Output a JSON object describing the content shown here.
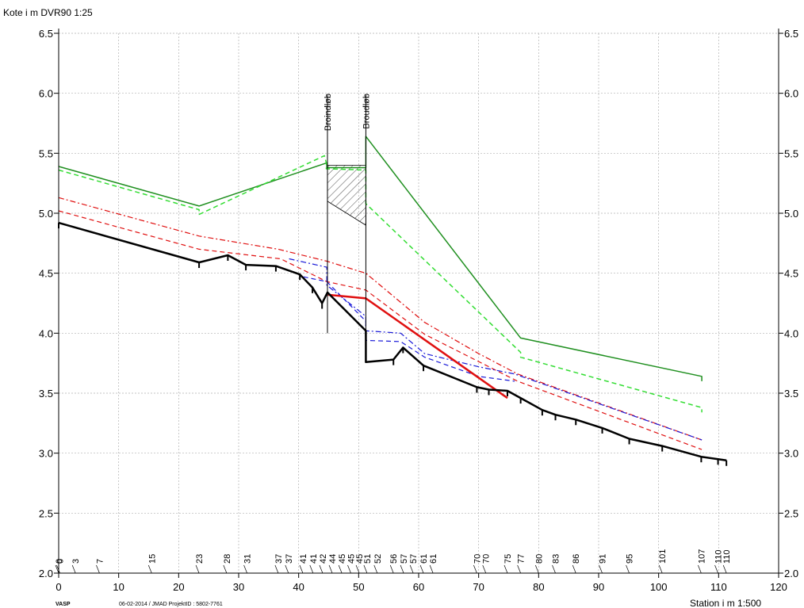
{
  "chart_data": {
    "type": "line",
    "ylabel": "Kote i m DVR90 1:25",
    "xlabel": "Station i m 1:500",
    "xlim": [
      0,
      120
    ],
    "ylim": [
      2.0,
      6.5
    ],
    "x_ticks": [
      0,
      10,
      20,
      30,
      40,
      50,
      60,
      70,
      80,
      90,
      100,
      110,
      120
    ],
    "y_ticks": [
      2.0,
      2.5,
      3.0,
      3.5,
      4.0,
      4.5,
      5.0,
      5.5,
      6.0,
      6.5
    ],
    "y_tick_labels": [
      "2.0",
      "2.5",
      "3.0",
      "3.5",
      "4.0",
      "4.5",
      "5.0",
      "5.5",
      "6.0",
      "6.5"
    ],
    "grid": true,
    "footer_left": "VASP",
    "footer_center": "06-02-2014 / JMAD   ProjektID : 5802-7761",
    "bridges": [
      {
        "label": "Broindløb",
        "x": 44.8
      },
      {
        "label": "Broudløb",
        "x": 51.2
      }
    ],
    "bridge_deck": {
      "x_start": 44.8,
      "x_end": 51.2,
      "top": 5.4,
      "bottom_start": 5.1,
      "bottom_end": 4.9
    },
    "stations": [
      {
        "x": 0,
        "label": "0"
      },
      {
        "x": 0.2,
        "label": "0"
      },
      {
        "x": 2.8,
        "label": "3"
      },
      {
        "x": 6.8,
        "label": "7"
      },
      {
        "x": 15.5,
        "label": "15"
      },
      {
        "x": 23.4,
        "label": "23"
      },
      {
        "x": 28,
        "label": "28"
      },
      {
        "x": 31.4,
        "label": "31"
      },
      {
        "x": 36.6,
        "label": "37"
      },
      {
        "x": 38.3,
        "label": "37"
      },
      {
        "x": 40.7,
        "label": "41"
      },
      {
        "x": 42.4,
        "label": "41"
      },
      {
        "x": 44,
        "label": "42"
      },
      {
        "x": 45.6,
        "label": "44"
      },
      {
        "x": 47.2,
        "label": "45"
      },
      {
        "x": 48.7,
        "label": "45"
      },
      {
        "x": 50.1,
        "label": "45"
      },
      {
        "x": 51.4,
        "label": "51"
      },
      {
        "x": 53.1,
        "label": "52"
      },
      {
        "x": 55.8,
        "label": "56"
      },
      {
        "x": 57.5,
        "label": "57"
      },
      {
        "x": 59.1,
        "label": "57"
      },
      {
        "x": 60.8,
        "label": "61"
      },
      {
        "x": 62.4,
        "label": "61"
      },
      {
        "x": 69.7,
        "label": "70"
      },
      {
        "x": 71.2,
        "label": "70"
      },
      {
        "x": 74.8,
        "label": "75"
      },
      {
        "x": 77,
        "label": "77"
      },
      {
        "x": 80,
        "label": "80"
      },
      {
        "x": 82.8,
        "label": "83"
      },
      {
        "x": 86.2,
        "label": "86"
      },
      {
        "x": 90.6,
        "label": "91"
      },
      {
        "x": 95.1,
        "label": "95"
      },
      {
        "x": 100.6,
        "label": "101"
      },
      {
        "x": 107.1,
        "label": "107"
      },
      {
        "x": 109.9,
        "label": "110"
      },
      {
        "x": 111.3,
        "label": "110"
      }
    ],
    "series": [
      {
        "color": "#1f8f1f",
        "width": 1.5,
        "dash": "",
        "points": [
          [
            0,
            5.39
          ],
          [
            23.4,
            5.06
          ],
          [
            44.7,
            5.42
          ],
          [
            44.7,
            5.38
          ],
          [
            51.2,
            5.38
          ],
          [
            51.2,
            5.64
          ],
          [
            77,
            3.96
          ],
          [
            107.2,
            3.64
          ],
          [
            107.2,
            3.6
          ]
        ]
      },
      {
        "color": "#33dd33",
        "width": 1.5,
        "dash": "6,4",
        "points": [
          [
            0,
            5.36
          ],
          [
            23.4,
            5.03
          ],
          [
            23.4,
            4.99
          ],
          [
            44.3,
            5.48
          ],
          [
            44.6,
            5.42
          ],
          [
            44.6,
            5.37
          ],
          [
            51.2,
            5.36
          ],
          [
            51.2,
            5.08
          ],
          [
            77,
            3.84
          ],
          [
            77,
            3.8
          ],
          [
            107.2,
            3.38
          ],
          [
            107.2,
            3.34
          ]
        ]
      },
      {
        "color": "#e01010",
        "width": 1.2,
        "dash": "7,3,2,3",
        "points": [
          [
            0,
            5.13
          ],
          [
            23.4,
            4.81
          ],
          [
            36.6,
            4.7
          ],
          [
            44.7,
            4.6
          ],
          [
            51.2,
            4.5
          ],
          [
            61,
            4.09
          ],
          [
            70,
            3.83
          ],
          [
            76.5,
            3.66
          ],
          [
            107.2,
            3.11
          ]
        ]
      },
      {
        "color": "#e01010",
        "width": 1.2,
        "dash": "6,4",
        "points": [
          [
            0,
            5.02
          ],
          [
            23.4,
            4.7
          ],
          [
            37,
            4.62
          ],
          [
            44.7,
            4.43
          ],
          [
            51.2,
            4.36
          ],
          [
            61,
            3.99
          ],
          [
            76.5,
            3.6
          ],
          [
            107.2,
            3.03
          ]
        ]
      },
      {
        "color": "#1a1ad8",
        "width": 1.2,
        "dash": "7,3,2,3",
        "points": [
          [
            38.4,
            4.62
          ],
          [
            44.7,
            4.55
          ],
          [
            44.7,
            4.4
          ],
          [
            51.2,
            4.14
          ],
          [
            51.2,
            4.02
          ],
          [
            57,
            4.0
          ],
          [
            61,
            3.83
          ],
          [
            70,
            3.72
          ],
          [
            76,
            3.66
          ],
          [
            107.2,
            3.11
          ]
        ]
      },
      {
        "color": "#1a1ad8",
        "width": 1.2,
        "dash": "6,4",
        "points": [
          [
            40.8,
            4.47
          ],
          [
            44.7,
            4.43
          ],
          [
            51.2,
            4.1
          ],
          [
            51.2,
            3.94
          ],
          [
            57,
            3.93
          ],
          [
            61,
            3.8
          ],
          [
            70,
            3.64
          ],
          [
            76,
            3.6
          ]
        ]
      },
      {
        "color": "#e01010",
        "width": 2.5,
        "dash": "",
        "points": [
          [
            44.9,
            4.32
          ],
          [
            51.2,
            4.29
          ],
          [
            74.8,
            3.46
          ]
        ]
      },
      {
        "color": "#000000",
        "width": 2.5,
        "dash": "",
        "points": [
          [
            0,
            4.92
          ],
          [
            23.4,
            4.59
          ],
          [
            28.2,
            4.65
          ],
          [
            31.2,
            4.57
          ],
          [
            36.2,
            4.56
          ],
          [
            40.2,
            4.49
          ],
          [
            42.3,
            4.38
          ],
          [
            43.9,
            4.25
          ],
          [
            44.8,
            4.34
          ],
          [
            51.2,
            4.02
          ],
          [
            51.2,
            3.76
          ],
          [
            55.8,
            3.78
          ],
          [
            57.4,
            3.88
          ],
          [
            60.8,
            3.73
          ],
          [
            69.7,
            3.55
          ],
          [
            71.7,
            3.53
          ],
          [
            74.8,
            3.52
          ],
          [
            77,
            3.46
          ],
          [
            80.6,
            3.36
          ],
          [
            82.8,
            3.32
          ],
          [
            86.2,
            3.28
          ],
          [
            90.6,
            3.21
          ],
          [
            95.1,
            3.12
          ],
          [
            100.6,
            3.06
          ],
          [
            107.1,
            2.97
          ],
          [
            109.9,
            2.95
          ],
          [
            111.3,
            2.94
          ]
        ]
      }
    ],
    "bed_ticks": [
      0,
      23.4,
      28.2,
      31.2,
      36.2,
      40.2,
      42.3,
      43.9,
      51.2,
      55.8,
      57.4,
      60.8,
      69.7,
      71.7,
      74.8,
      77,
      80.6,
      82.8,
      86.2,
      90.6,
      95.1,
      100.6,
      107.1,
      109.9,
      111.3
    ]
  }
}
